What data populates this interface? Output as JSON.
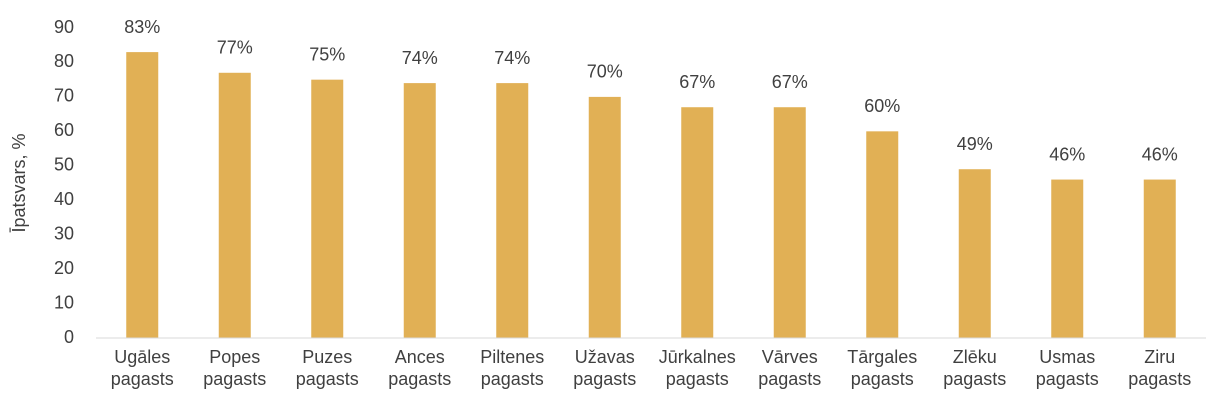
{
  "chart_data": {
    "type": "bar",
    "ylabel": "Īpatsvars, %",
    "categories": [
      "Ugāles pagasts",
      "Popes pagasts",
      "Puzes pagasts",
      "Ances pagasts",
      "Piltenes pagasts",
      "Užavas pagasts",
      "Jūrkalnes pagasts",
      "Vārves pagasts",
      "Tārgales pagasts",
      "Zlēku pagasts",
      "Usmas pagasts",
      "Ziru pagasts"
    ],
    "values": [
      83,
      77,
      75,
      74,
      74,
      70,
      67,
      67,
      60,
      49,
      46,
      46
    ],
    "value_labels": [
      "83%",
      "77%",
      "75%",
      "74%",
      "74%",
      "70%",
      "67%",
      "67%",
      "60%",
      "49%",
      "46%",
      "46%"
    ],
    "color": "#e1b055",
    "ylim": [
      0,
      90
    ],
    "yticks": [
      0,
      10,
      20,
      30,
      40,
      50,
      60,
      70,
      80,
      90
    ],
    "grid": false
  }
}
